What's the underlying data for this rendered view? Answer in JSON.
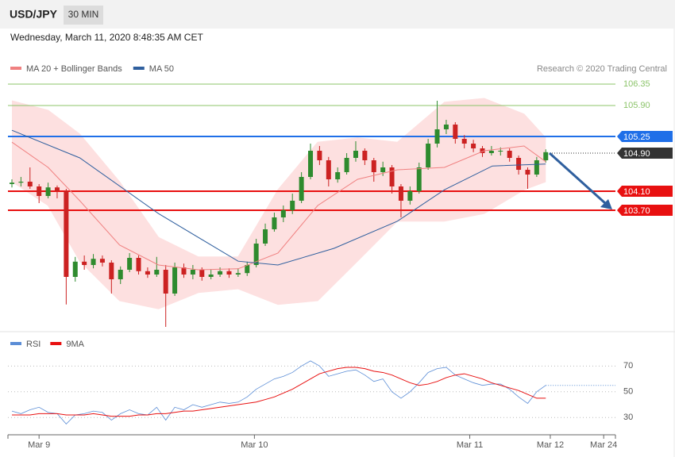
{
  "header": {
    "symbol": "USD/JPY",
    "timeframe": "30 MIN",
    "timestamp": "Wednesday, March 11, 2020 8:48:35 AM CET"
  },
  "chart_data": [
    {
      "type": "candlestick",
      "credit": "Research © 2020 Trading Central",
      "xlim": [
        0,
        66.7
      ],
      "ylim": [
        101.2,
        107.45
      ],
      "up_color": "#2e8b2e",
      "down_color": "#cc2222",
      "series": [
        {
          "name": "MA 20 + Bollinger Bands",
          "color": "#f08080",
          "band_color": "#fde0e0",
          "x": [
            0,
            4,
            7.5,
            11.9,
            16.2,
            20.6,
            25,
            29.4,
            33.8,
            38.2,
            42.6,
            47.8,
            52.2,
            56.6,
            59
          ],
          "values": [
            105.13,
            104.6,
            103.9,
            102.97,
            102.55,
            102.45,
            102.47,
            102.8,
            103.8,
            104.35,
            104.55,
            104.6,
            104.95,
            105.05,
            104.72
          ],
          "upper": [
            106.0,
            105.8,
            105.3,
            104.3,
            103.13,
            102.72,
            102.72,
            104.13,
            105.13,
            105.22,
            105.13,
            105.97,
            106.05,
            105.72,
            105.22
          ],
          "lower": [
            104.3,
            103.8,
            102.63,
            101.8,
            101.63,
            101.97,
            102.05,
            101.72,
            101.8,
            102.63,
            103.47,
            103.47,
            103.63,
            104.13,
            104.3
          ]
        },
        {
          "name": "MA 50",
          "color": "#2f5f9e",
          "x": [
            0,
            7.5,
            16.2,
            25,
            29.4,
            35.6,
            42.6,
            47.8,
            53.1,
            59
          ],
          "values": [
            105.38,
            104.8,
            103.63,
            102.63,
            102.55,
            102.9,
            103.47,
            104.13,
            104.63,
            104.67
          ]
        }
      ],
      "levels": [
        {
          "value": 106.35,
          "label": "106.35",
          "color": "#8cc46a",
          "box": false
        },
        {
          "value": 105.9,
          "label": "105.90",
          "color": "#8cc46a",
          "box": false
        },
        {
          "value": 105.25,
          "label": "105.25",
          "color": "#1f6fe8",
          "box": true
        },
        {
          "value": 104.9,
          "label": "104.90",
          "color": "#333333",
          "box": true,
          "dotted": true
        },
        {
          "value": 104.1,
          "label": "104.10",
          "color": "#e81010",
          "box": true
        },
        {
          "value": 103.7,
          "label": "103.70",
          "color": "#e81010",
          "box": true
        }
      ],
      "candles": [
        [
          104.25,
          104.35,
          104.18,
          104.28
        ],
        [
          104.28,
          104.4,
          104.2,
          104.3
        ],
        [
          104.3,
          104.6,
          104.15,
          104.2
        ],
        [
          104.2,
          104.25,
          103.85,
          104.0
        ],
        [
          104.0,
          104.28,
          103.95,
          104.18
        ],
        [
          104.18,
          104.22,
          103.95,
          104.1
        ],
        [
          104.1,
          104.15,
          101.72,
          102.3
        ],
        [
          102.3,
          102.72,
          102.2,
          102.62
        ],
        [
          102.62,
          102.75,
          102.45,
          102.55
        ],
        [
          102.55,
          102.78,
          102.48,
          102.68
        ],
        [
          102.68,
          102.75,
          102.52,
          102.6
        ],
        [
          102.6,
          102.65,
          101.95,
          102.25
        ],
        [
          102.25,
          102.52,
          102.15,
          102.45
        ],
        [
          102.45,
          102.8,
          102.4,
          102.7
        ],
        [
          102.7,
          102.75,
          102.35,
          102.42
        ],
        [
          102.42,
          102.5,
          102.28,
          102.35
        ],
        [
          102.35,
          102.72,
          102.3,
          102.45
        ],
        [
          102.45,
          102.55,
          101.25,
          101.95
        ],
        [
          101.95,
          102.6,
          101.9,
          102.5
        ],
        [
          102.5,
          102.58,
          102.28,
          102.35
        ],
        [
          102.35,
          102.55,
          102.25,
          102.45
        ],
        [
          102.45,
          102.5,
          102.22,
          102.3
        ],
        [
          102.3,
          102.45,
          102.25,
          102.35
        ],
        [
          102.35,
          102.5,
          102.3,
          102.42
        ],
        [
          102.42,
          102.48,
          102.28,
          102.35
        ],
        [
          102.35,
          102.48,
          102.3,
          102.38
        ],
        [
          102.38,
          102.62,
          102.32,
          102.55
        ],
        [
          102.55,
          103.1,
          102.5,
          103.0
        ],
        [
          103.0,
          103.42,
          102.95,
          103.3
        ],
        [
          103.3,
          103.65,
          103.25,
          103.55
        ],
        [
          103.55,
          103.8,
          103.45,
          103.7
        ],
        [
          103.7,
          104.05,
          103.62,
          103.9
        ],
        [
          103.9,
          104.5,
          103.85,
          104.4
        ],
        [
          104.4,
          105.1,
          104.35,
          104.95
        ],
        [
          104.95,
          105.05,
          104.65,
          104.75
        ],
        [
          104.75,
          104.82,
          104.2,
          104.35
        ],
        [
          104.35,
          104.6,
          104.28,
          104.5
        ],
        [
          104.5,
          104.9,
          104.45,
          104.8
        ],
        [
          104.8,
          105.15,
          104.72,
          104.95
        ],
        [
          104.95,
          105.0,
          104.65,
          104.75
        ],
        [
          104.75,
          104.8,
          104.3,
          104.5
        ],
        [
          104.5,
          104.72,
          104.42,
          104.6
        ],
        [
          104.6,
          104.65,
          104.05,
          104.2
        ],
        [
          104.2,
          104.25,
          103.55,
          103.9
        ],
        [
          103.9,
          104.2,
          103.82,
          104.1
        ],
        [
          104.1,
          104.7,
          104.05,
          104.6
        ],
        [
          104.6,
          105.2,
          104.55,
          105.1
        ],
        [
          105.1,
          106.0,
          105.02,
          105.4
        ],
        [
          105.4,
          105.6,
          105.3,
          105.5
        ],
        [
          105.5,
          105.55,
          105.1,
          105.2
        ],
        [
          105.2,
          105.28,
          105.0,
          105.1
        ],
        [
          105.1,
          105.18,
          104.92,
          105.0
        ],
        [
          105.0,
          105.05,
          104.82,
          104.9
        ],
        [
          104.9,
          105.05,
          104.85,
          104.95
        ],
        [
          104.95,
          105.02,
          104.85,
          104.95
        ],
        [
          104.95,
          105.0,
          104.72,
          104.8
        ],
        [
          104.8,
          104.85,
          104.45,
          104.55
        ],
        [
          104.55,
          104.6,
          104.15,
          104.45
        ],
        [
          104.45,
          104.82,
          104.4,
          104.75
        ],
        [
          104.75,
          104.98,
          104.7,
          104.92
        ]
      ]
    },
    {
      "type": "line",
      "xlim": [
        0,
        66.7
      ],
      "ylim": [
        16,
        93
      ],
      "yticks": [
        30,
        50,
        70
      ],
      "xticks": [
        {
          "value": 3,
          "label": "Mar 9"
        },
        {
          "value": 26.8,
          "label": "Mar 10"
        },
        {
          "value": 50.6,
          "label": "Mar 11"
        },
        {
          "value": 59.5,
          "label": "Mar 12"
        },
        {
          "value": 65.4,
          "label": "Mar 24"
        }
      ],
      "series": [
        {
          "name": "RSI",
          "color": "#5b8dd6",
          "values": [
            35,
            33,
            36,
            38,
            34,
            33,
            25,
            32,
            33,
            35,
            34,
            28,
            33,
            36,
            33,
            32,
            38,
            28,
            38,
            36,
            40,
            38,
            40,
            42,
            41,
            42,
            46,
            52,
            56,
            60,
            62,
            65,
            70,
            74,
            70,
            62,
            64,
            66,
            67,
            63,
            58,
            60,
            50,
            45,
            50,
            57,
            65,
            68,
            69,
            63,
            60,
            57,
            55,
            56,
            56,
            52,
            46,
            41,
            50,
            55
          ]
        },
        {
          "name": "9MA",
          "color": "#e81010",
          "values": [
            32,
            32,
            32,
            33,
            33,
            33,
            32,
            32,
            32,
            33,
            32,
            31,
            31,
            31,
            32,
            32,
            33,
            33,
            34,
            35,
            35,
            36,
            37,
            38,
            39,
            40,
            41,
            42,
            44,
            46,
            49,
            52,
            56,
            60,
            64,
            66,
            68,
            69,
            69,
            68,
            66,
            65,
            63,
            60,
            57,
            55,
            56,
            58,
            61,
            63,
            64,
            62,
            60,
            57,
            55,
            53,
            51,
            48,
            45,
            45
          ]
        }
      ]
    }
  ]
}
